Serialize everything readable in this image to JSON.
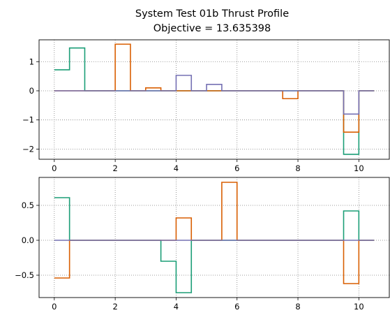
{
  "figure": {
    "title_line1": "System Test 01b Thrust Profile",
    "title_line2": "Objective = 13.635398"
  },
  "chart_data": [
    {
      "type": "line",
      "step": "post",
      "grid": true,
      "grid_style": "dotted",
      "xlim": [
        -0.5,
        11.0
      ],
      "ylim": [
        -2.35,
        1.75
      ],
      "xticks": [
        0,
        2,
        4,
        6,
        8,
        10
      ],
      "yticks": [
        -2,
        -1,
        0,
        1
      ],
      "x": [
        0,
        0.5,
        1,
        1.5,
        2,
        2.5,
        3,
        3.5,
        4,
        4.5,
        5,
        5.5,
        6,
        6.5,
        7,
        7.5,
        8,
        8.5,
        9,
        9.5,
        10,
        10.5
      ],
      "series": [
        {
          "color": "#1b9e77",
          "values": [
            0.72,
            1.47,
            0,
            0,
            0,
            0,
            0,
            0,
            0,
            0,
            0,
            0,
            0,
            0,
            0,
            0,
            0,
            0,
            0,
            -2.18,
            0,
            0
          ]
        },
        {
          "color": "#d95f02",
          "values": [
            0,
            0,
            0,
            0,
            1.6,
            0,
            0.1,
            0,
            0,
            0,
            0,
            0,
            0,
            0,
            0,
            -0.27,
            0,
            0,
            0,
            -1.42,
            0,
            0
          ]
        },
        {
          "color": "#7570b3",
          "values": [
            0,
            0,
            0,
            0,
            0,
            0,
            0,
            0,
            0.53,
            0,
            0.22,
            0,
            0,
            0,
            0,
            0,
            0,
            0,
            0,
            -0.8,
            0,
            0
          ]
        }
      ]
    },
    {
      "type": "line",
      "step": "post",
      "grid": true,
      "grid_style": "dotted",
      "xlim": [
        -0.5,
        11.0
      ],
      "ylim": [
        -0.82,
        0.9
      ],
      "xticks": [
        0,
        2,
        4,
        6,
        8,
        10
      ],
      "yticks": [
        -0.5,
        0.0,
        0.5
      ],
      "x": [
        0,
        0.5,
        1,
        1.5,
        2,
        2.5,
        3,
        3.5,
        4,
        4.5,
        5,
        5.5,
        6,
        6.5,
        7,
        7.5,
        8,
        8.5,
        9,
        9.5,
        10,
        10.5
      ],
      "series": [
        {
          "color": "#1b9e77",
          "values": [
            0.61,
            0,
            0,
            0,
            0,
            0,
            0,
            -0.3,
            -0.75,
            0,
            0,
            0,
            0,
            0,
            0,
            0,
            0,
            0,
            0,
            0.42,
            0,
            0
          ]
        },
        {
          "color": "#d95f02",
          "values": [
            -0.54,
            0,
            0,
            0,
            0,
            0,
            0,
            0,
            0.32,
            0,
            0,
            0.83,
            0,
            0,
            0,
            0,
            0,
            0,
            0,
            -0.62,
            0,
            0
          ]
        },
        {
          "color": "#7570b3",
          "values": [
            0,
            0,
            0,
            0,
            0,
            0,
            0,
            0,
            0,
            0,
            0,
            0,
            0,
            0,
            0,
            0,
            0,
            0,
            0,
            0,
            0,
            0
          ]
        }
      ]
    }
  ]
}
